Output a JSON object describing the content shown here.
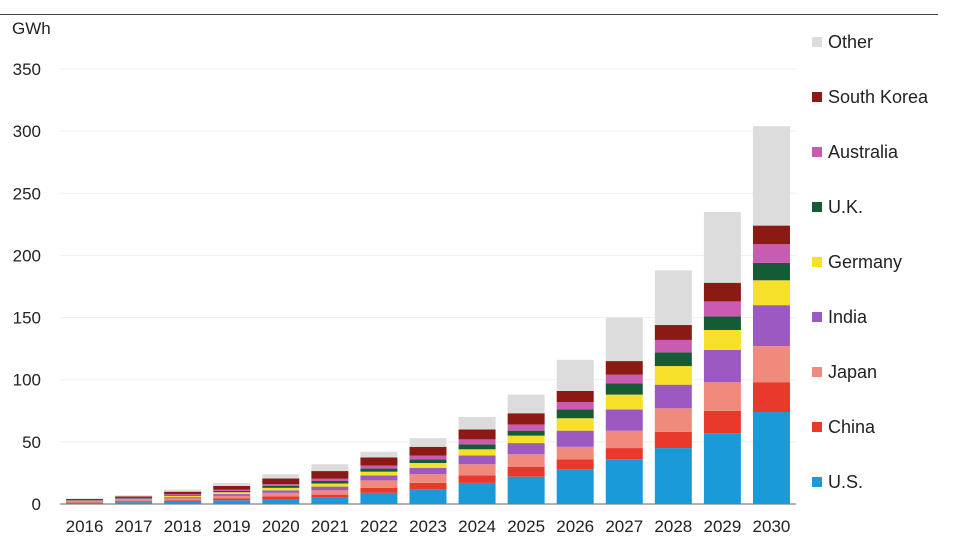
{
  "chart_data": {
    "type": "bar",
    "stacked": true,
    "unit_label": "GWh",
    "title": "",
    "xlabel": "",
    "ylabel": "GWh",
    "ylim": [
      0,
      350
    ],
    "yticks": [
      0,
      50,
      100,
      150,
      200,
      250,
      300,
      350
    ],
    "grid": true,
    "legend_position": "right",
    "categories": [
      "2016",
      "2017",
      "2018",
      "2019",
      "2020",
      "2021",
      "2022",
      "2023",
      "2024",
      "2025",
      "2026",
      "2027",
      "2028",
      "2029",
      "2030"
    ],
    "series": [
      {
        "name": "U.S.",
        "color": "#1a9bd7",
        "values": [
          1,
          1.5,
          2,
          3,
          4,
          5,
          9,
          12,
          17,
          22,
          28,
          36,
          45,
          57,
          74
        ]
      },
      {
        "name": "China",
        "color": "#e8392c",
        "values": [
          0.5,
          0.8,
          1,
          1.5,
          2,
          2.5,
          4,
          5,
          6,
          8,
          8,
          9,
          13,
          18,
          24
        ]
      },
      {
        "name": "Japan",
        "color": "#ef8a7c",
        "values": [
          0.5,
          0.8,
          1.5,
          2,
          3,
          3.5,
          6,
          7,
          9,
          10,
          10,
          14,
          19,
          23,
          29
        ]
      },
      {
        "name": "India",
        "color": "#9b59c1",
        "values": [
          0.3,
          0.5,
          1,
          1.5,
          2,
          3,
          4,
          5,
          7,
          9,
          13,
          17,
          19,
          26,
          33
        ]
      },
      {
        "name": "Germany",
        "color": "#f6e029",
        "values": [
          0.3,
          0.5,
          1,
          1.5,
          2,
          2.5,
          3,
          4,
          5,
          6,
          10,
          12,
          15,
          16,
          20
        ]
      },
      {
        "name": "U.K.",
        "color": "#155b35",
        "values": [
          0.2,
          0.4,
          0.6,
          1,
          1.5,
          2,
          2.5,
          3,
          4,
          4,
          7,
          9,
          11,
          11,
          14
        ]
      },
      {
        "name": "Australia",
        "color": "#c85cb2",
        "values": [
          0.3,
          0.4,
          0.8,
          1,
          1.5,
          2,
          2.5,
          3,
          4,
          5,
          6,
          7,
          10,
          12,
          15
        ]
      },
      {
        "name": "South Korea",
        "color": "#8b1a14",
        "values": [
          0.9,
          1.2,
          2,
          3,
          4.5,
          6,
          6.5,
          7,
          8,
          9,
          9,
          11,
          12,
          15,
          15
        ]
      },
      {
        "name": "Other",
        "color": "#dcdcdc",
        "values": [
          0.5,
          0.9,
          1.6,
          2.5,
          3.5,
          5.5,
          4.5,
          7,
          10,
          15,
          25,
          35,
          44,
          57,
          80
        ]
      }
    ]
  }
}
